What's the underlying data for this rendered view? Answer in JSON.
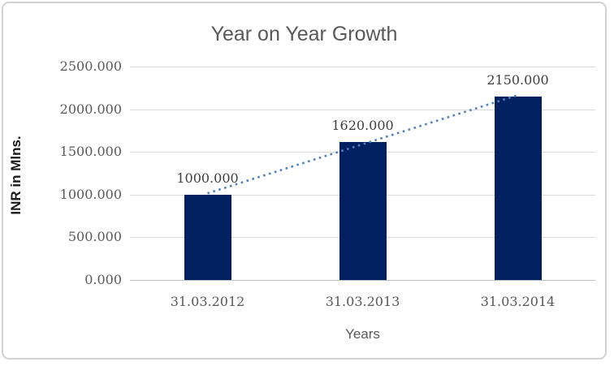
{
  "frame": {
    "background": "#ffffff",
    "border_color": "#d2d2d2"
  },
  "chart_data": {
    "type": "bar",
    "title": "Year on Year Growth",
    "xlabel": "Years",
    "ylabel": "INR in Mlns.",
    "categories": [
      "31.03.2012",
      "31.03.2013",
      "31.03.2014"
    ],
    "values": [
      1000,
      1620,
      2150
    ],
    "value_labels": [
      "1000.000",
      "1620.000",
      "2150.000"
    ],
    "ylim": [
      0,
      2500
    ],
    "y_ticks": [
      0,
      500,
      1000,
      1500,
      2000,
      2500
    ],
    "y_tick_labels": [
      "0.000",
      "500.000",
      "1000.000",
      "1500.000",
      "2000.000",
      "2500.000"
    ],
    "grid": true,
    "legend": "none",
    "bar_color": "#002060",
    "gridline_color": "#d9d9d9",
    "axis_line_color": "#bfbfbf",
    "title_color": "#595959",
    "tick_label_color": "#595959",
    "data_label_color": "#3f3f3f",
    "trendline": {
      "fit": "linear",
      "style": "dotted",
      "color": "#4e81bd",
      "endpoint_values": [
        1015,
        2165
      ]
    }
  }
}
